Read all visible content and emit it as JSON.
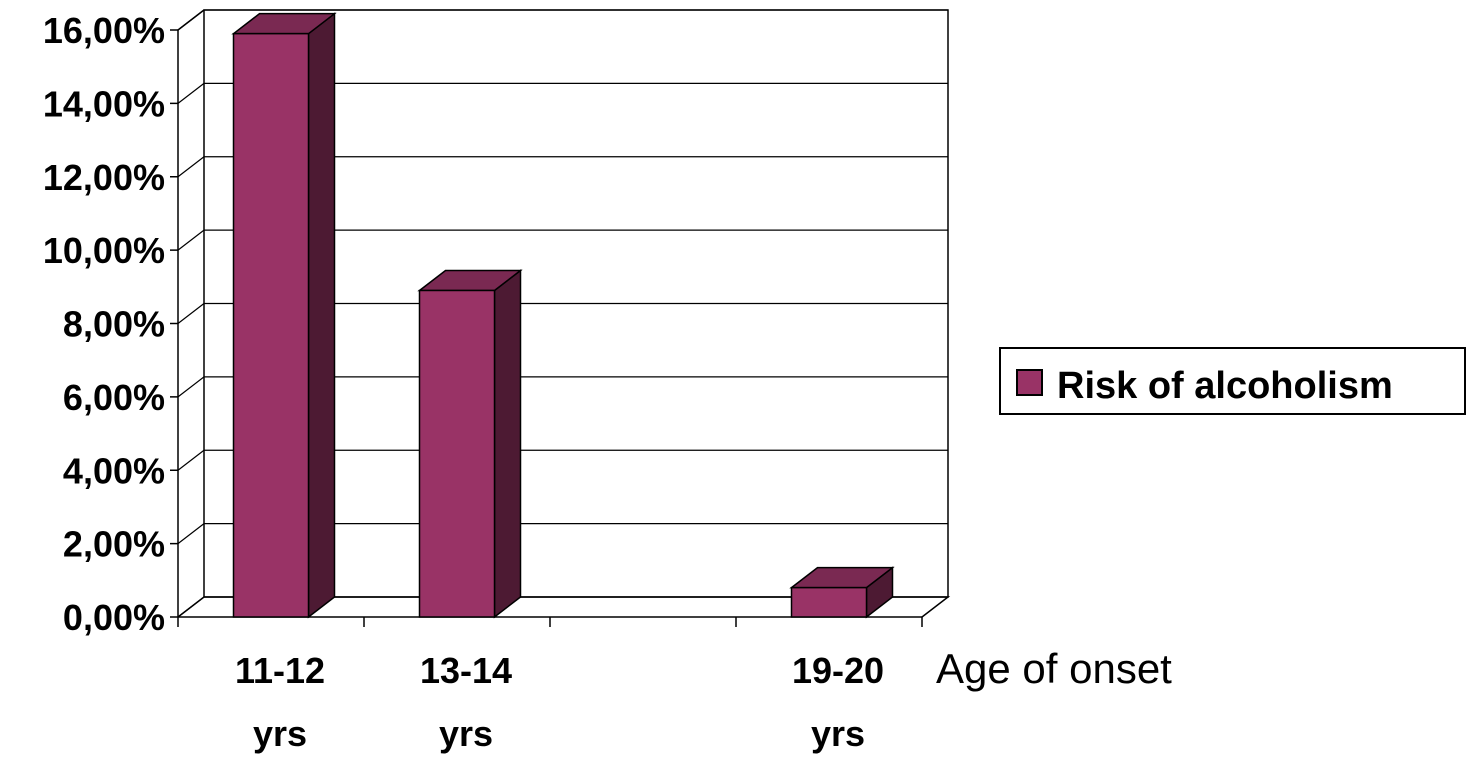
{
  "chart_data": {
    "type": "bar",
    "categories": [
      [
        "11-12",
        "yrs"
      ],
      [
        "13-14",
        "yrs"
      ],
      [
        "",
        ""
      ],
      [
        "19-20",
        "yrs"
      ]
    ],
    "series": [
      {
        "name": "Risk of alcoholism",
        "values": [
          15.9,
          8.9,
          0,
          0.8
        ],
        "color": "#993366"
      }
    ],
    "y_ticks": [
      "0,00%",
      "2,00%",
      "4,00%",
      "6,00%",
      "8,00%",
      "10,00%",
      "12,00%",
      "14,00%",
      "16,00%"
    ],
    "ylim": [
      0,
      16
    ],
    "xlabel": "Age of onset",
    "ylabel": "",
    "title": "",
    "grid": true,
    "legend": "right",
    "side_color": "#4d1a33",
    "top_color": "#7a2952"
  }
}
